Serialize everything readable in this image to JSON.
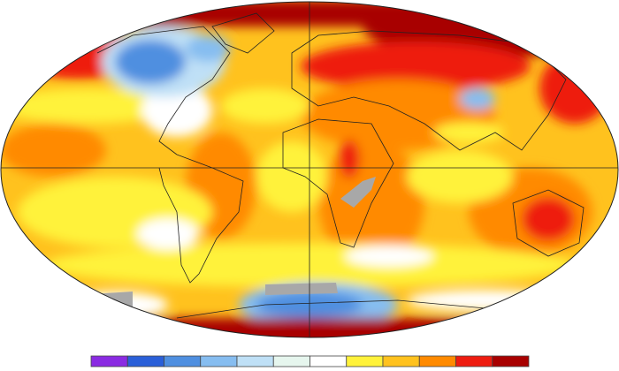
{
  "map": {
    "colorbar": {
      "colors": [
        "#8a2be2",
        "#2a5fd8",
        "#4f8fe0",
        "#86bdf0",
        "#bfe0f6",
        "#e6f6ee",
        "#ffffff",
        "#fff23a",
        "#ffc21e",
        "#ff8a00",
        "#ee1c10",
        "#a80000"
      ]
    }
  }
}
